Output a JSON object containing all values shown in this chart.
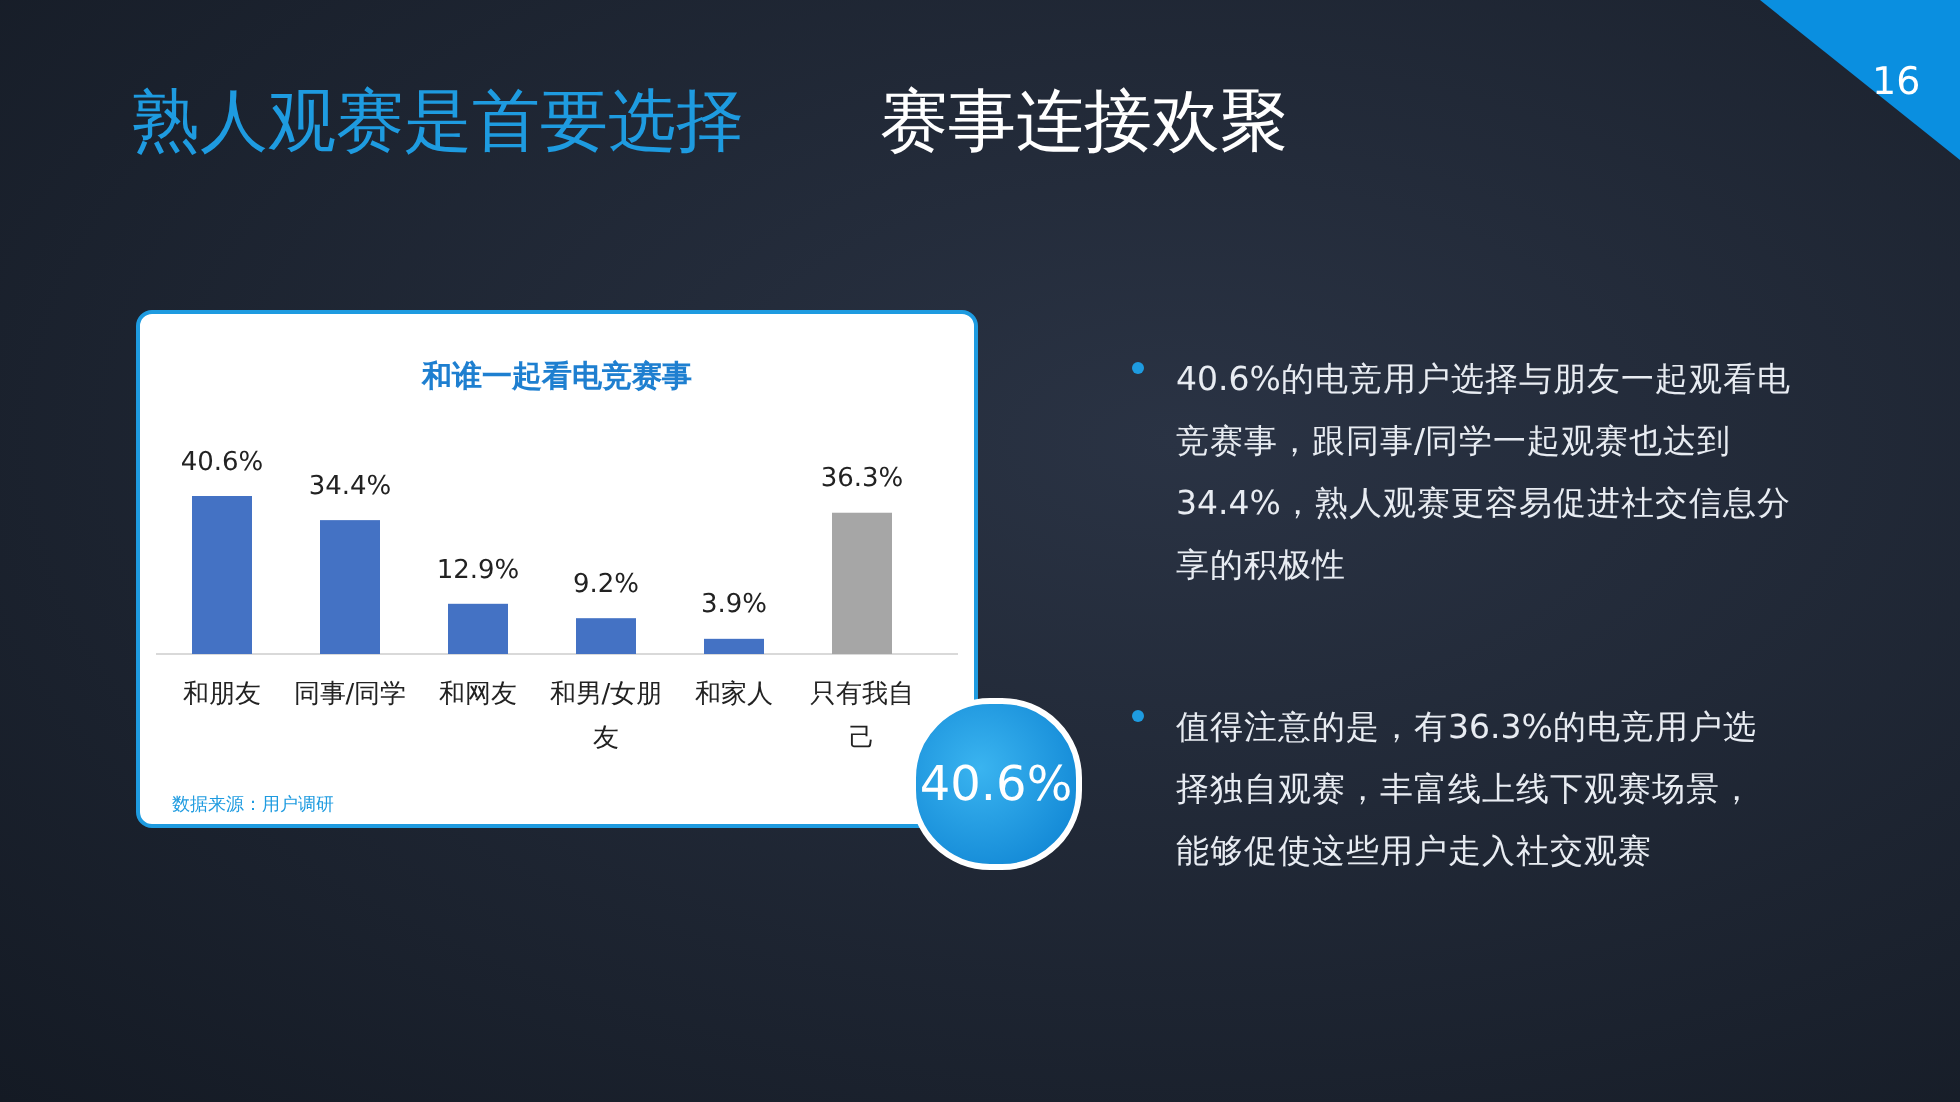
{
  "chart_data": {
    "type": "bar",
    "title": "和谁一起看电竞赛事",
    "categories": [
      "和朋友",
      "同事/同学",
      "和网友",
      "和男/女朋友",
      "和家人",
      "只有我自己"
    ],
    "values": [
      40.6,
      34.4,
      12.9,
      9.2,
      3.9,
      36.3
    ],
    "colors": [
      "#4472c4",
      "#4472c4",
      "#4472c4",
      "#4472c4",
      "#4472c4",
      "#a6a6a6"
    ],
    "value_labels": [
      "40.6%",
      "34.4%",
      "12.9%",
      "9.2%",
      "3.9%",
      "36.3%"
    ],
    "annotations": [
      "熟人观赛是首要选择",
      "赛事连接欢聚",
      "16",
      "数据来源：用户调研",
      "40.6%",
      "40.6%的电竞用户选择与朋友一起观看电竞赛事，跟同事/同学一起观赛也达到34.4%，熟人观赛更容易促进社交信息分享的积极性",
      "值得注意的是，有36.3%的电竞用户选择独自观赛，丰富线上线下观赛场景，能够促使这些用户走入社交观赛"
    ]
  }
}
